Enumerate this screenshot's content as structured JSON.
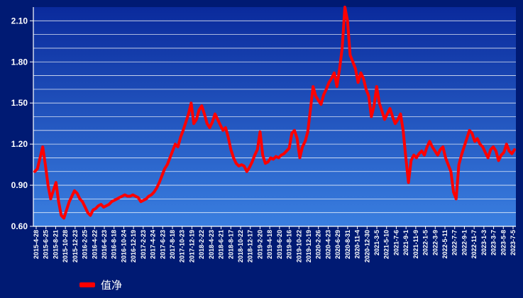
{
  "colors": {
    "background": "#001a73",
    "plot_top": "#0a2a9c",
    "plot_bottom": "#3a7fe0",
    "grid": "#ffffff",
    "axis": "#ffffff",
    "line": "#ff0000"
  },
  "chart_data": {
    "type": "line",
    "title": "",
    "xlabel": "",
    "ylabel": "",
    "ylim": [
      0.6,
      2.2
    ],
    "yticks": [
      0.6,
      0.9,
      1.2,
      1.5,
      1.8,
      2.1
    ],
    "ytick_labels": [
      "0.60",
      "0.90",
      "1.20",
      "1.50",
      "1.80",
      "2.10"
    ],
    "xticks": [
      "2015-4-28",
      "2015-6-25",
      "2015-8-21",
      "2015-10-28",
      "2015-12-23",
      "2016-2-25",
      "2016-4-22",
      "2016-6-23",
      "2016-8-18",
      "2016-10-24",
      "2016-12-19",
      "2017-2-23",
      "2017-4-24",
      "2017-6-23",
      "2017-8-18",
      "2017-10-23",
      "2017-12-19",
      "2018-2-22",
      "2018-4-23",
      "2018-6-21",
      "2018-8-17",
      "2018-10-22",
      "2018-12-17",
      "2019-2-20",
      "2019-4-18",
      "2019-6-20",
      "2019-8-16",
      "2019-10-22",
      "2019-12-19",
      "2020-2-26",
      "2020-4-23",
      "2020-6-29",
      "2020-8-31",
      "2020-11-4",
      "2020-12-30",
      "2021-3-5",
      "2021-5-10",
      "2021-7-6",
      "2021-9-1",
      "2021-11-9",
      "2022-1-5",
      "2022-3-9",
      "2022-5-11",
      "2022-7-7",
      "2022-9-1",
      "2022-11-7",
      "2023-1-3",
      "2023-3-7",
      "2023-5-8",
      "2023-7-5"
    ],
    "grid": true,
    "legend": "bottom-left",
    "series": [
      {
        "name": "值净",
        "color": "#ff0000",
        "values": [
          1.0,
          1.02,
          1.1,
          1.18,
          1.05,
          0.9,
          0.8,
          0.86,
          0.92,
          0.78,
          0.68,
          0.66,
          0.72,
          0.78,
          0.82,
          0.86,
          0.84,
          0.8,
          0.78,
          0.74,
          0.7,
          0.68,
          0.72,
          0.73,
          0.75,
          0.76,
          0.74,
          0.75,
          0.76,
          0.78,
          0.79,
          0.8,
          0.81,
          0.82,
          0.83,
          0.82,
          0.82,
          0.83,
          0.82,
          0.81,
          0.78,
          0.79,
          0.8,
          0.82,
          0.83,
          0.85,
          0.88,
          0.92,
          0.97,
          1.02,
          1.05,
          1.1,
          1.15,
          1.2,
          1.18,
          1.25,
          1.3,
          1.36,
          1.42,
          1.5,
          1.35,
          1.38,
          1.45,
          1.48,
          1.42,
          1.35,
          1.32,
          1.36,
          1.42,
          1.38,
          1.34,
          1.3,
          1.32,
          1.25,
          1.16,
          1.1,
          1.06,
          1.04,
          1.05,
          1.04,
          1.0,
          1.03,
          1.07,
          1.12,
          1.16,
          1.29,
          1.12,
          1.06,
          1.07,
          1.1,
          1.09,
          1.11,
          1.1,
          1.12,
          1.13,
          1.15,
          1.17,
          1.28,
          1.3,
          1.24,
          1.1,
          1.18,
          1.22,
          1.29,
          1.45,
          1.62,
          1.55,
          1.52,
          1.49,
          1.56,
          1.6,
          1.65,
          1.68,
          1.72,
          1.62,
          1.75,
          1.9,
          2.2,
          2.1,
          1.85,
          1.8,
          1.75,
          1.65,
          1.72,
          1.68,
          1.6,
          1.55,
          1.4,
          1.48,
          1.62,
          1.5,
          1.44,
          1.38,
          1.42,
          1.46,
          1.4,
          1.35,
          1.38,
          1.42,
          1.3,
          1.1,
          0.92,
          1.08,
          1.12,
          1.1,
          1.13,
          1.15,
          1.12,
          1.18,
          1.22,
          1.18,
          1.15,
          1.12,
          1.16,
          1.18,
          1.1,
          1.05,
          1.0,
          0.85,
          0.8,
          1.05,
          1.12,
          1.18,
          1.24,
          1.3,
          1.28,
          1.22,
          1.24,
          1.2,
          1.18,
          1.14,
          1.1,
          1.16,
          1.18,
          1.15,
          1.08,
          1.12,
          1.14,
          1.2,
          1.15,
          1.13,
          1.16
        ]
      }
    ]
  }
}
